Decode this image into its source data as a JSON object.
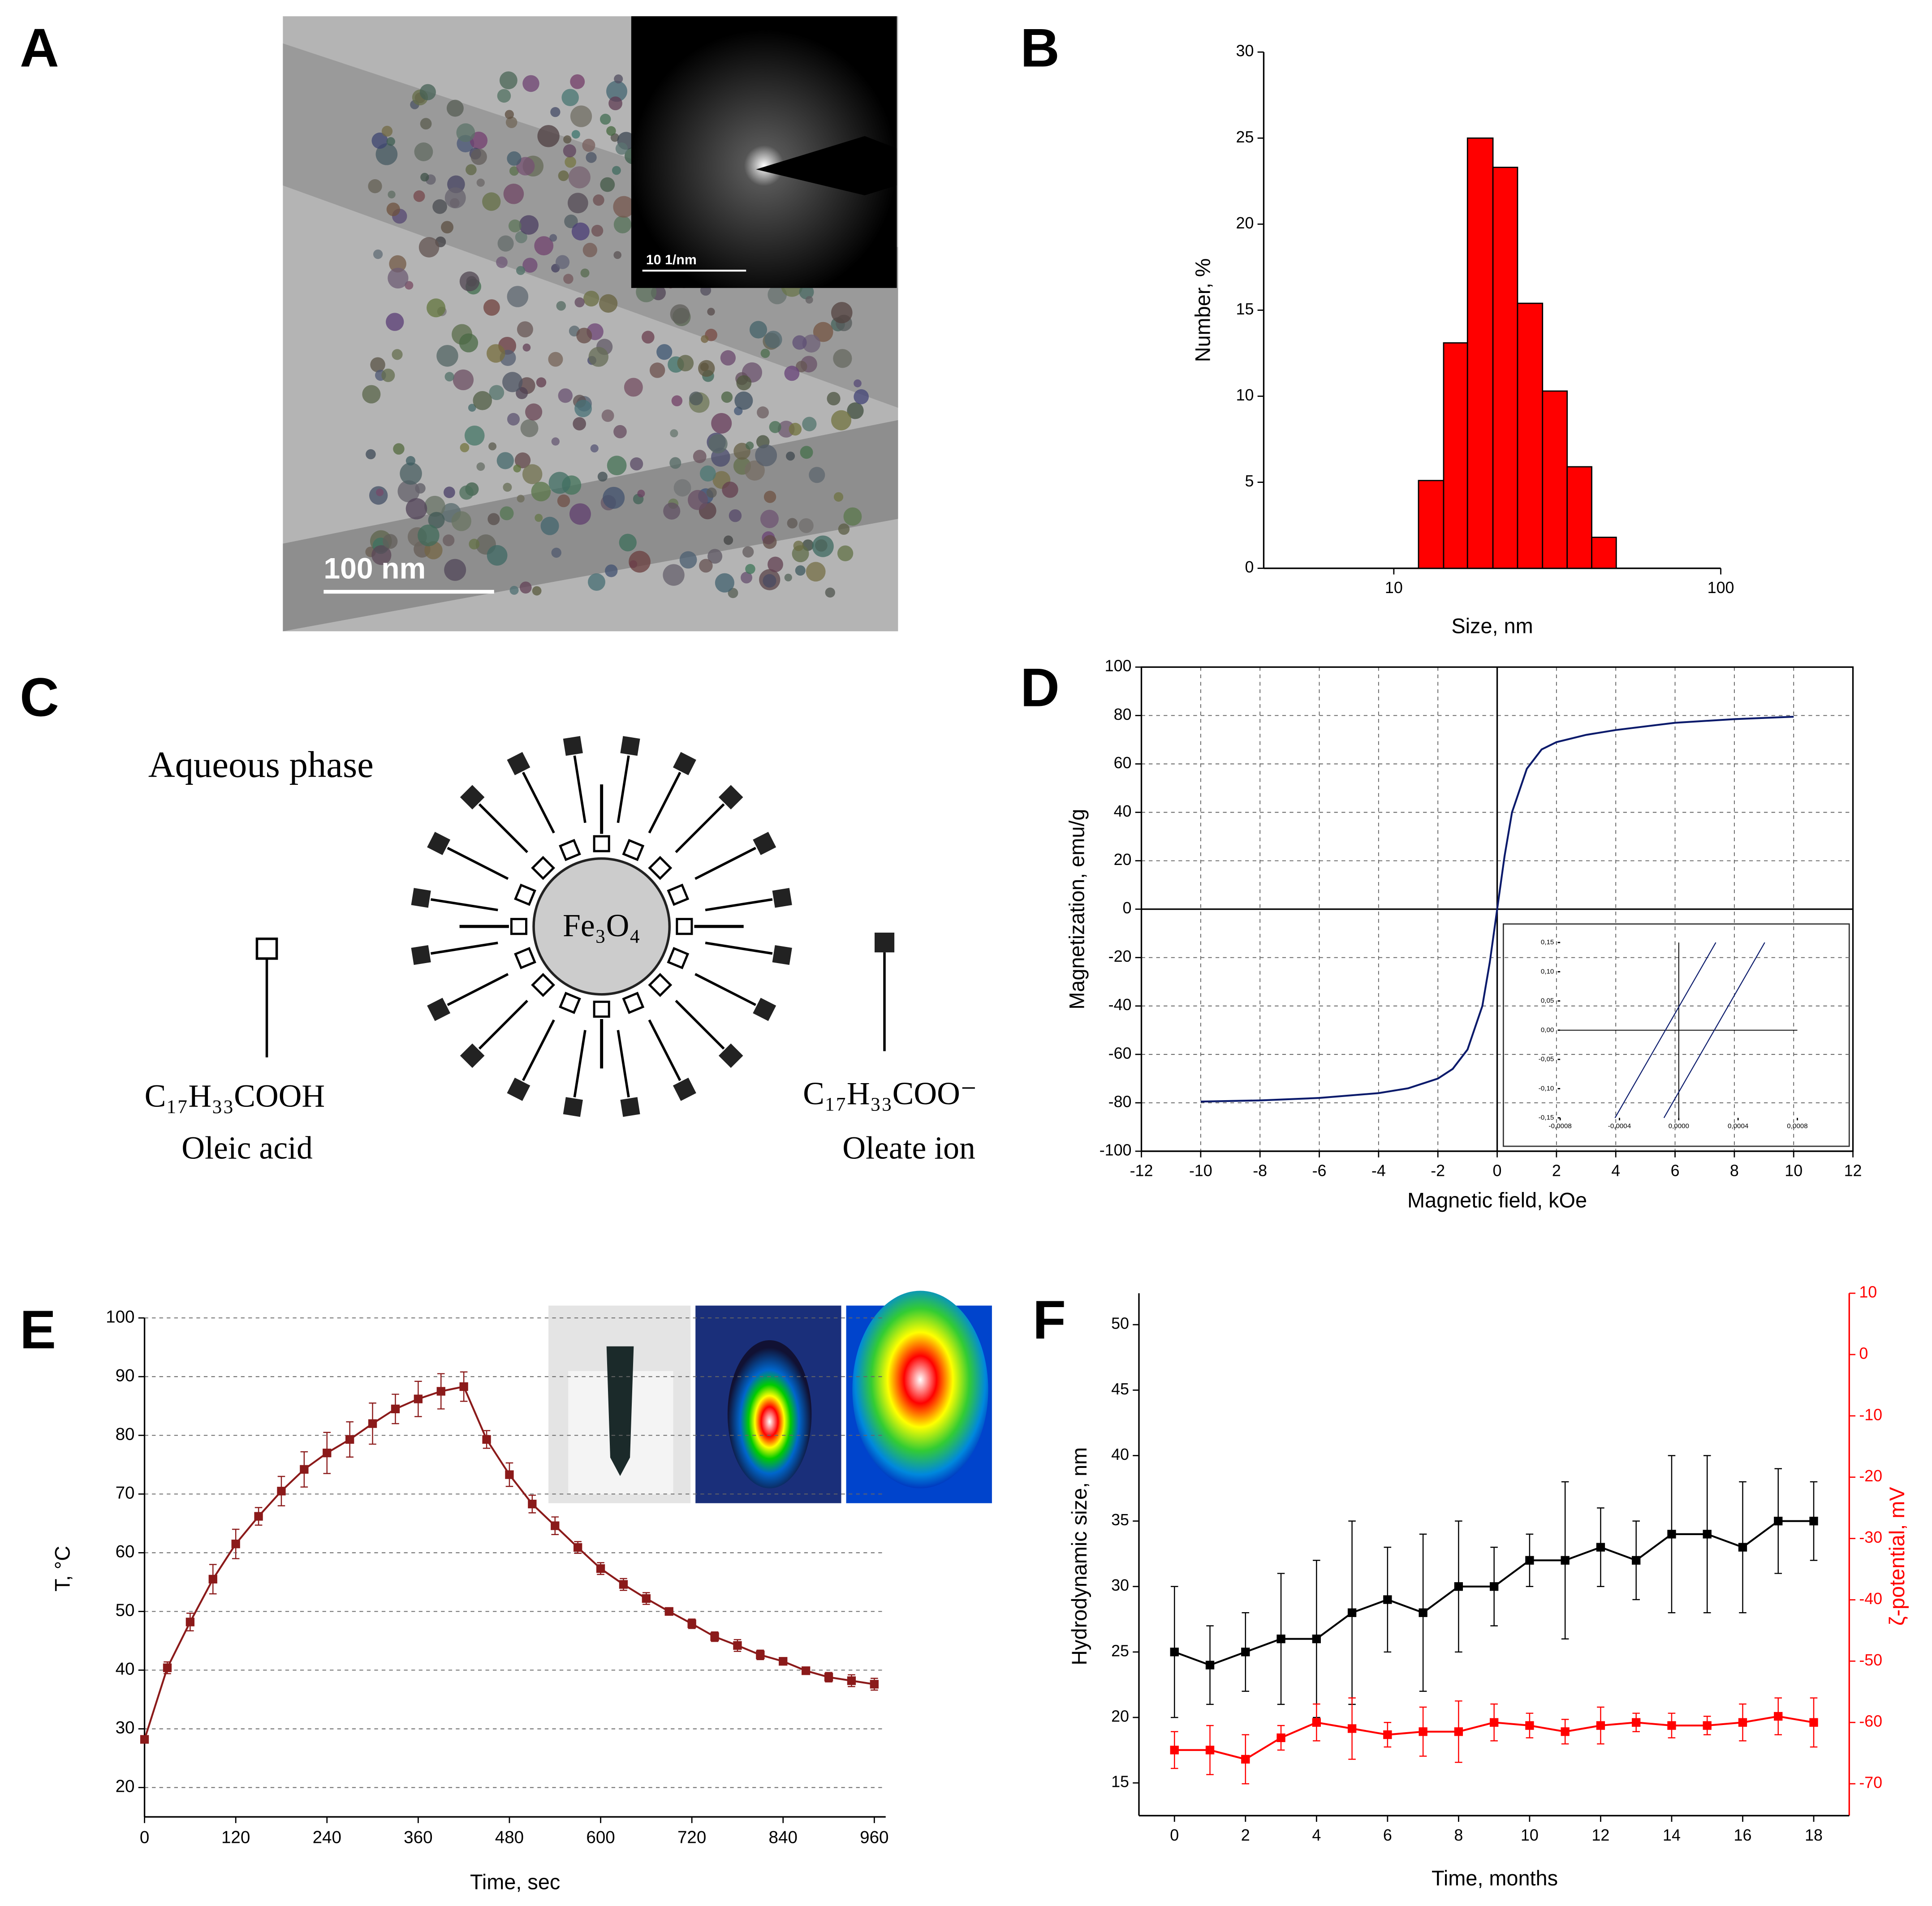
{
  "panel_labels": [
    "A",
    "B",
    "C",
    "D",
    "E",
    "F"
  ],
  "tem": {
    "scale_bar": "100 nm",
    "inset_scale_bar": "10 1/nm"
  },
  "diagram": {
    "phase": "Aqueous phase",
    "core": "Fe₃O₄",
    "acid_formula": "C₁₇H₃₃COOH",
    "acid_name": "Oleic acid",
    "ion_formula": "C₁₇H₃₃COO⁻",
    "ion_name": "Oleate ion"
  },
  "chart_data": [
    {
      "type": "histogram",
      "xlabel": "Size, nm",
      "ylabel": "Number, %",
      "xlog": true,
      "bins": [
        11.9,
        14.2,
        16.8,
        20.1,
        23.9,
        28.5,
        33.9,
        40.3,
        47.9
      ],
      "values": [
        5.1,
        13.1,
        25,
        23.3,
        15.4,
        10.3,
        5.9,
        1.8
      ],
      "color": "#ff0000",
      "xlim": [
        4,
        100
      ],
      "xticks": [
        10,
        100
      ],
      "ylim": [
        0,
        30
      ],
      "yticks": [
        0,
        5,
        10,
        15,
        20,
        25,
        30
      ],
      "grid": false
    },
    {
      "type": "line",
      "xlabel": "Magnetic field, kOe",
      "ylabel": "Magnetization, emu/g",
      "x": [
        -10,
        -8,
        -6,
        -4,
        -3,
        -2,
        -1.5,
        -1,
        -0.5,
        -0.25,
        0,
        0.25,
        0.5,
        1,
        1.5,
        2,
        3,
        4,
        6,
        8,
        10
      ],
      "series": [
        {
          "color": "#0a1a6b",
          "values": [
            -79.5,
            -79,
            -78,
            -76,
            -74,
            -70,
            -66,
            -58,
            -40,
            -22,
            0,
            22,
            40,
            58,
            66,
            69,
            72,
            74,
            77,
            78.5,
            79.5
          ]
        }
      ],
      "xlim": [
        -12,
        12
      ],
      "xticks": [
        -12,
        -10,
        -8,
        -6,
        -4,
        -2,
        0,
        2,
        4,
        6,
        8,
        10,
        12
      ],
      "ylim": [
        -100,
        100
      ],
      "yticks": [
        -100,
        -80,
        -60,
        -40,
        -20,
        0,
        20,
        40,
        60,
        80,
        100
      ],
      "grid": "both",
      "zero_lines": true,
      "inset": {
        "type": "line",
        "xlim": [
          -0.0008,
          0.0008
        ],
        "ylim": [
          -0.15,
          0.15
        ],
        "zero_lines": true,
        "grid": false,
        "xticks": [
          {
            "value": -0.0008,
            "label": "-0,0008"
          },
          {
            "value": -0.0004,
            "label": "-0,0004"
          },
          {
            "value": 0,
            "label": "0,0000"
          },
          {
            "value": 0.0004,
            "label": "0,0004"
          },
          {
            "value": 0.0008,
            "label": "0,0008"
          }
        ],
        "yticks": [
          {
            "value": 0.15,
            "label": "0,15"
          },
          {
            "value": 0.1,
            "label": "0,10"
          },
          {
            "value": 0.05,
            "label": "0,05"
          },
          {
            "value": 0,
            "label": "0,00"
          },
          {
            "value": -0.05,
            "label": "-0,05"
          },
          {
            "value": -0.1,
            "label": "-0,10"
          },
          {
            "value": -0.15,
            "label": "-0,15"
          }
        ],
        "series": [
          {
            "color": "#0a1a6b",
            "x": [
              -0.00043,
              0.00025
            ],
            "values": [
              -0.15,
              0.15
            ]
          },
          {
            "color": "#0a1a6b",
            "x": [
              -0.0001,
              0.00058
            ],
            "values": [
              -0.15,
              0.15
            ]
          }
        ]
      }
    },
    {
      "type": "line",
      "xlabel": "Time, sec",
      "ylabel": "T, °C",
      "x": [
        0,
        30,
        60,
        90,
        120,
        150,
        180,
        210,
        240,
        270,
        300,
        330,
        360,
        390,
        420,
        450,
        480,
        510,
        540,
        570,
        600,
        630,
        660,
        690,
        720,
        750,
        780,
        810,
        840,
        870,
        900,
        930,
        960
      ],
      "series": [
        {
          "color": "#8b1a1a",
          "marker": "square",
          "values": [
            28.2,
            40.4,
            48.2,
            55.5,
            61.5,
            66.2,
            70.5,
            74.2,
            77,
            79.3,
            82,
            84.5,
            86.2,
            87.5,
            88.3,
            79.3,
            73.3,
            68.3,
            64.6,
            60.9,
            57.3,
            54.6,
            52.2,
            50,
            47.9,
            45.7,
            44.2,
            42.6,
            41.5,
            39.9,
            38.8,
            38.2,
            37.6
          ],
          "errors": [
            0,
            1,
            1.5,
            2.5,
            2.5,
            1.5,
            2.5,
            3,
            3.5,
            3,
            3.5,
            2.5,
            3,
            3,
            2.5,
            1.5,
            2,
            1.5,
            1.5,
            1,
            1,
            1,
            1,
            0.5,
            0.8,
            0.8,
            1,
            0.8,
            0.5,
            0.5,
            0.8,
            1,
            1
          ]
        }
      ],
      "xlim": [
        0,
        975
      ],
      "xticks": [
        0,
        120,
        240,
        360,
        480,
        600,
        720,
        840,
        960
      ],
      "ylim": [
        15,
        100
      ],
      "yticks": [
        20,
        30,
        40,
        50,
        60,
        70,
        80,
        90,
        100
      ],
      "grid": "y"
    },
    {
      "type": "line",
      "xlabel": "Time, months",
      "ylabel": "Hydrodynamic size, nm",
      "y2label": "ζ-potential, mV",
      "x": [
        0,
        1,
        2,
        3,
        4,
        5,
        6,
        7,
        8,
        9,
        10,
        11,
        12,
        13,
        14,
        15,
        16,
        17,
        18
      ],
      "series": [
        {
          "color": "#000000",
          "marker": "square",
          "values": [
            25,
            24,
            25,
            26,
            26,
            28,
            29,
            28,
            30,
            30,
            32,
            32,
            33,
            32,
            34,
            34,
            33,
            35,
            35
          ],
          "errors": [
            5,
            3,
            3,
            5,
            6,
            7,
            4,
            6,
            5,
            3,
            2,
            6,
            3,
            3,
            6,
            6,
            5,
            4,
            3
          ]
        },
        {
          "color": "#ff0000",
          "marker": "square",
          "axis": "y2",
          "values": [
            -64.5,
            -64.5,
            -66,
            -62.5,
            -60,
            -61,
            -62,
            -61.5,
            -61.5,
            -60,
            -60.5,
            -61.5,
            -60.5,
            -60,
            -60.5,
            -60.5,
            -60,
            -59,
            -60
          ],
          "errors": [
            3,
            4,
            4,
            2,
            3,
            5,
            2,
            4,
            5,
            3,
            2,
            2,
            3,
            1.5,
            2,
            1.5,
            3,
            3,
            4
          ]
        }
      ],
      "xlim": [
        -1,
        19
      ],
      "xticks": [
        0,
        2,
        4,
        6,
        8,
        10,
        12,
        14,
        16,
        18
      ],
      "ylim": [
        12.5,
        52.4
      ],
      "yticks": [
        15,
        20,
        25,
        30,
        35,
        40,
        45,
        50
      ],
      "y2lim": [
        -75.2,
        10
      ],
      "y2ticks": [
        -70,
        -60,
        -50,
        -40,
        -30,
        -20,
        -10,
        0,
        10
      ],
      "grid": false
    }
  ]
}
